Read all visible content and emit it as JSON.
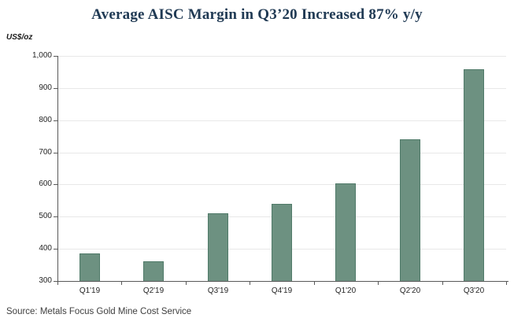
{
  "chart_data": {
    "type": "bar",
    "title": "Average AISC Margin in Q3’20 Increased 87% y/y",
    "ylabel": "US$/oz",
    "xlabel": "",
    "categories": [
      "Q1'19",
      "Q2'19",
      "Q3'19",
      "Q4'19",
      "Q1'20",
      "Q2'20",
      "Q3'20"
    ],
    "values": [
      385,
      360,
      510,
      540,
      603,
      740,
      958
    ],
    "ylim": [
      300,
      1000
    ],
    "ytick_step": 100,
    "ytick_labels": [
      "300",
      "400",
      "500",
      "600",
      "700",
      "800",
      "900",
      "1,000"
    ],
    "grid": true,
    "legend": "none",
    "bar_color": "#6d9181",
    "bar_border_color": "#507a69",
    "axis_color": "#595959",
    "grid_color": "#e8e8e8",
    "title_color": "#203a54"
  },
  "source": "Source: Metals Focus Gold Mine Cost Service"
}
